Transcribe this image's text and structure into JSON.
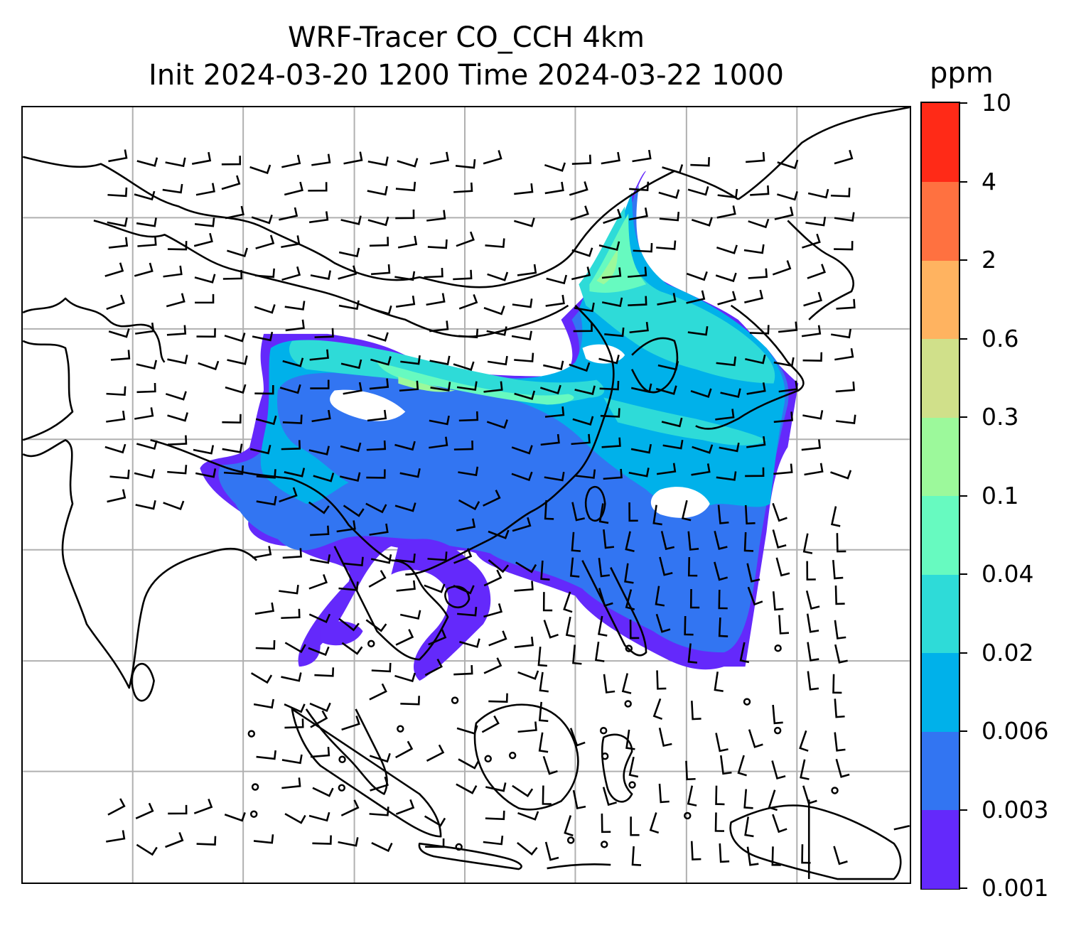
{
  "title": {
    "line1": "WRF-Tracer CO_CCH 4km",
    "line2": "Init 2024-03-20 1200 Time 2024-03-22 1000"
  },
  "colorbar": {
    "units": "ppm",
    "tick_labels": [
      "0.001",
      "0.003",
      "0.006",
      "0.02",
      "0.04",
      "0.1",
      "0.3",
      "0.6",
      "2",
      "4",
      "10"
    ],
    "colors": [
      "#6429FB",
      "#3275F2",
      "#00B1EA",
      "#2EDBD8",
      "#67FAC0",
      "#9CF99B",
      "#D0E08A",
      "#FFB360",
      "#FF7140",
      "#FF2A17"
    ]
  },
  "map": {
    "gridlines": true,
    "feature_colors": {
      "coastline": "#000000",
      "gridline": "#b0b0b0",
      "wind_barb": "#000000"
    },
    "layers": [
      "coastlines",
      "country-borders",
      "tracer-concentration-fill",
      "wind-barbs"
    ]
  }
}
